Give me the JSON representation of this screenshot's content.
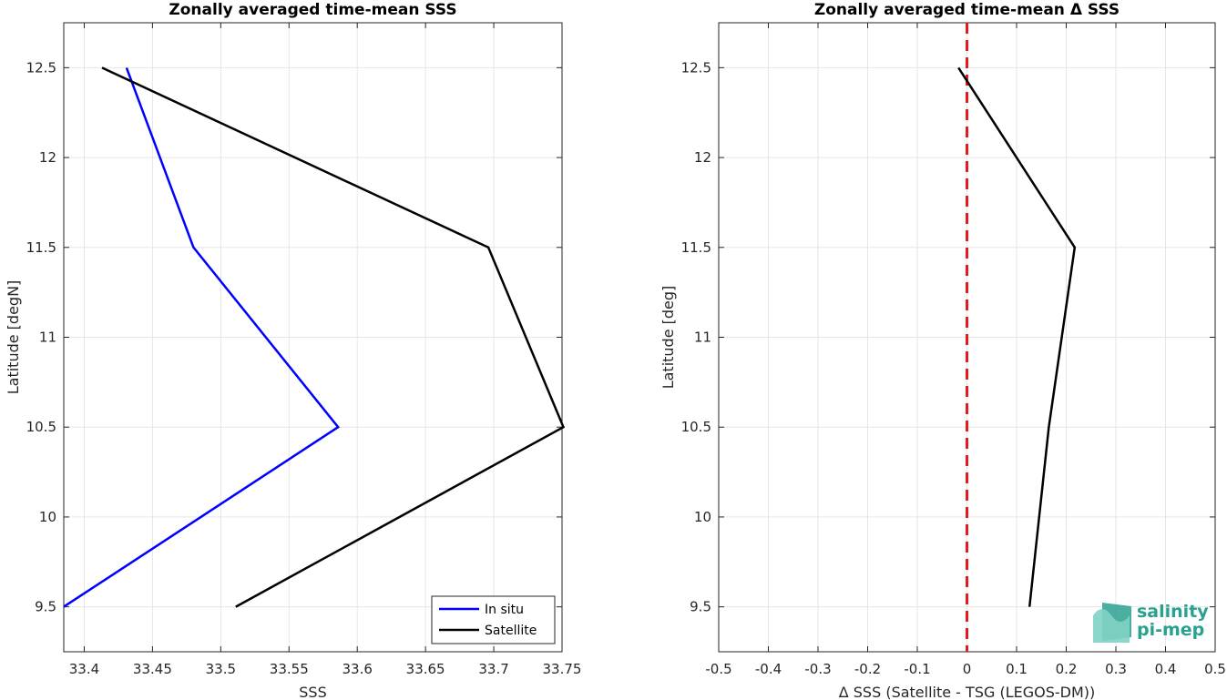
{
  "chart_data": [
    {
      "type": "line",
      "title": "Zonally averaged time-mean SSS",
      "xlabel": "SSS",
      "ylabel": "Latitude [degN]",
      "xlim": [
        33.385,
        33.75
      ],
      "ylim": [
        9.25,
        12.75
      ],
      "xticks": [
        33.4,
        33.45,
        33.5,
        33.55,
        33.6,
        33.65,
        33.7,
        33.75
      ],
      "xticklabels": [
        "33.4",
        "33.45",
        "33.5",
        "33.55",
        "33.6",
        "33.65",
        "33.7",
        "33.75"
      ],
      "yticks": [
        9.5,
        10,
        10.5,
        11,
        11.5,
        12,
        12.5
      ],
      "yticklabels": [
        "9.5",
        "10",
        "10.5",
        "11",
        "11.5",
        "12",
        "12.5"
      ],
      "grid": true,
      "legend": "bottom-right",
      "series": [
        {
          "name": "In situ",
          "color": "#0000ff",
          "x": [
            33.385,
            33.586,
            33.48,
            33.431
          ],
          "y": [
            9.5,
            10.5,
            11.5,
            12.5
          ]
        },
        {
          "name": "Satellite",
          "color": "#000000",
          "x": [
            33.511,
            33.751,
            33.696,
            33.413
          ],
          "y": [
            9.5,
            10.5,
            11.5,
            12.5
          ]
        }
      ]
    },
    {
      "type": "line",
      "title": "Zonally averaged time-mean Δ SSS",
      "xlabel": "Δ SSS (Satellite - TSG (LEGOS-DM))",
      "ylabel": "Latitude [deg]",
      "xlim": [
        -0.5,
        0.5
      ],
      "ylim": [
        9.25,
        12.75
      ],
      "xticks": [
        -0.5,
        -0.4,
        -0.3,
        -0.2,
        -0.1,
        0,
        0.1,
        0.2,
        0.3,
        0.4,
        0.5
      ],
      "xticklabels": [
        "-0.5",
        "-0.4",
        "-0.3",
        "-0.2",
        "-0.1",
        "0",
        "0.1",
        "0.2",
        "0.3",
        "0.4",
        "0.5"
      ],
      "yticks": [
        9.5,
        10,
        10.5,
        11,
        11.5,
        12,
        12.5
      ],
      "yticklabels": [
        "9.5",
        "10",
        "10.5",
        "11",
        "11.5",
        "12",
        "12.5"
      ],
      "grid": true,
      "reference_line": {
        "x": 0,
        "color": "#e41a1c",
        "style": "dashed"
      },
      "series": [
        {
          "color": "#000000",
          "x": [
            0.126,
            0.165,
            0.217,
            -0.017
          ],
          "y": [
            9.5,
            10.5,
            11.5,
            12.5
          ]
        }
      ]
    }
  ],
  "logo": {
    "line1": "salinity",
    "line2": "pi-mep",
    "color": "#2aa08f"
  }
}
